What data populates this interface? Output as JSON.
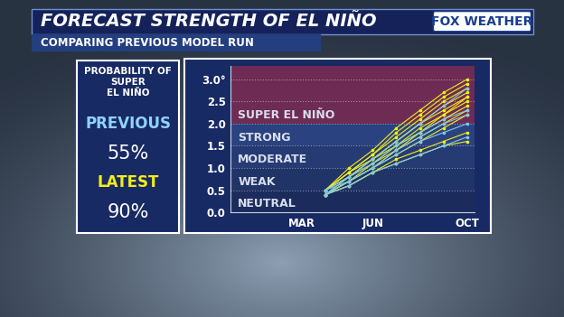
{
  "chart_data": {
    "type": "line",
    "title": "FORECAST STRENGTH OF EL NIÑO",
    "subtitle": "COMPARING PREVIOUS MODEL RUN",
    "logo": "FOX WEATHER",
    "probability_panel": {
      "title": "PROBABILITY OF\nSUPER\nEL NIÑO",
      "previous": {
        "label": "PREVIOUS",
        "value": "55%"
      },
      "latest": {
        "label": "LATEST",
        "value": "90%"
      }
    },
    "categories": [
      "MAR",
      null,
      null,
      "JUN",
      null,
      null,
      null,
      "OCT"
    ],
    "xlim": [
      -3,
      7.3
    ],
    "ylim": [
      0,
      3.3
    ],
    "yticks": [
      {
        "value": 0,
        "label": "0.0"
      },
      {
        "value": 0.5,
        "label": "0.5"
      },
      {
        "value": 1,
        "label": "1.0"
      },
      {
        "value": 1.5,
        "label": "1.5"
      },
      {
        "value": 2,
        "label": "2.0"
      },
      {
        "value": 2.5,
        "label": "2.5"
      },
      {
        "value": 3,
        "label": "3.0°"
      }
    ],
    "bands": [
      {
        "label": "NEUTRAL",
        "from": 0,
        "to": 0.5
      },
      {
        "label": "WEAK",
        "from": 0.5,
        "to": 1.0
      },
      {
        "label": "MODERATE",
        "from": 1.0,
        "to": 1.5
      },
      {
        "label": "STRONG",
        "from": 1.5,
        "to": 2.0
      },
      {
        "label": "SUPER EL NIÑO",
        "from": 2.0,
        "to": 3.3
      }
    ],
    "grid": true,
    "marker": "o",
    "series": [
      {
        "color": "#f2ee1a",
        "values": [
          null,
          0.4,
          0.8,
          1.2,
          1.6,
          2.0,
          2.3,
          2.6
        ]
      },
      {
        "color": "#f2ee1a",
        "values": [
          null,
          0.5,
          0.9,
          1.3,
          1.7,
          2.1,
          2.5,
          2.8
        ]
      },
      {
        "color": "#f2ee1a",
        "values": [
          null,
          0.4,
          0.7,
          1.0,
          1.3,
          1.6,
          1.9,
          2.2
        ]
      },
      {
        "color": "#f2ee1a",
        "values": [
          null,
          0.5,
          1.0,
          1.4,
          1.9,
          2.3,
          2.7,
          3.0
        ]
      },
      {
        "color": "#f2ee1a",
        "values": [
          null,
          0.4,
          0.6,
          0.9,
          1.2,
          1.4,
          1.6,
          1.8
        ]
      },
      {
        "color": "#f2ee1a",
        "values": [
          null,
          0.5,
          0.8,
          1.1,
          1.5,
          1.8,
          2.1,
          2.4
        ]
      },
      {
        "color": "#f2ee1a",
        "values": [
          null,
          0.4,
          0.7,
          1.1,
          1.4,
          1.7,
          2.0,
          2.3
        ]
      },
      {
        "color": "#f2ee1a",
        "values": [
          null,
          0.5,
          0.9,
          1.2,
          1.6,
          2.0,
          2.4,
          2.7
        ]
      },
      {
        "color": "#f2ee1a",
        "values": [
          null,
          0.4,
          0.6,
          0.9,
          1.1,
          1.3,
          1.5,
          1.6
        ]
      },
      {
        "color": "#f2ee1a",
        "values": [
          null,
          0.5,
          0.8,
          1.2,
          1.5,
          1.9,
          2.2,
          2.5
        ]
      },
      {
        "color": "#f2ee1a",
        "values": [
          null,
          0.4,
          0.7,
          1.0,
          1.4,
          1.8,
          2.2,
          2.6
        ]
      },
      {
        "color": "#f2ee1a",
        "values": [
          null,
          0.5,
          0.9,
          1.3,
          1.8,
          2.2,
          2.6,
          2.9
        ]
      },
      {
        "color": "#7ec8f0",
        "values": [
          null,
          0.4,
          0.7,
          1.0,
          1.3,
          1.6,
          1.8,
          2.0
        ]
      },
      {
        "color": "#7ec8f0",
        "values": [
          null,
          0.4,
          0.6,
          0.9,
          1.1,
          1.3,
          1.5,
          1.7
        ]
      },
      {
        "color": "#7ec8f0",
        "values": [
          null,
          0.5,
          0.8,
          1.1,
          1.5,
          1.8,
          2.1,
          2.3
        ]
      },
      {
        "color": "#7ec8f0",
        "values": [
          null,
          0.4,
          0.8,
          1.2,
          1.6,
          2.0,
          2.4,
          2.8
        ]
      },
      {
        "color": "#7ec8f0",
        "values": [
          null,
          0.5,
          0.7,
          1.0,
          1.4,
          1.7,
          2.0,
          2.2
        ]
      }
    ]
  }
}
